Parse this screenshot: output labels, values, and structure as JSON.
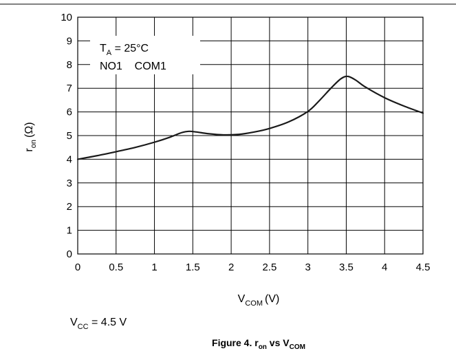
{
  "chart_data": {
    "type": "line",
    "title": "",
    "xlabel": {
      "main": "V",
      "sub": "COM",
      "unit": "(V)"
    },
    "ylabel": {
      "main": "r",
      "sub": "on",
      "unit": "(Ω)"
    },
    "xlim": [
      0,
      4.5
    ],
    "ylim": [
      0,
      10
    ],
    "xticks": [
      "0",
      "0.5",
      "1",
      "1.5",
      "2",
      "2.5",
      "3",
      "3.5",
      "4",
      "4.5"
    ],
    "yticks": [
      "0",
      "1",
      "2",
      "3",
      "4",
      "5",
      "6",
      "7",
      "8",
      "9",
      "10"
    ],
    "grid": true,
    "series": [
      {
        "points": [
          [
            0.0,
            4.0
          ],
          [
            0.25,
            4.15
          ],
          [
            0.5,
            4.32
          ],
          [
            0.75,
            4.5
          ],
          [
            1.0,
            4.72
          ],
          [
            1.2,
            4.93
          ],
          [
            1.35,
            5.12
          ],
          [
            1.45,
            5.18
          ],
          [
            1.55,
            5.15
          ],
          [
            1.7,
            5.08
          ],
          [
            1.9,
            5.03
          ],
          [
            2.1,
            5.05
          ],
          [
            2.3,
            5.15
          ],
          [
            2.5,
            5.3
          ],
          [
            2.75,
            5.58
          ],
          [
            3.0,
            6.02
          ],
          [
            3.15,
            6.48
          ],
          [
            3.3,
            7.0
          ],
          [
            3.43,
            7.4
          ],
          [
            3.52,
            7.5
          ],
          [
            3.62,
            7.35
          ],
          [
            3.75,
            7.05
          ],
          [
            4.0,
            6.6
          ],
          [
            4.25,
            6.25
          ],
          [
            4.5,
            5.95
          ]
        ]
      }
    ],
    "annotation": {
      "condition_main": "T",
      "condition_sub": "A",
      "condition_rest": " = 25°C",
      "path_label": "NO1    COM1"
    }
  },
  "footnote": {
    "main": "V",
    "sub": "CC",
    "rest": " = 4.5 V"
  },
  "caption": {
    "prefix": "Figure 4. r",
    "sub1": "on",
    "mid": " vs V",
    "sub2": "COM"
  },
  "colors": {
    "line": "#1a1a1a",
    "grid": "#000000"
  }
}
